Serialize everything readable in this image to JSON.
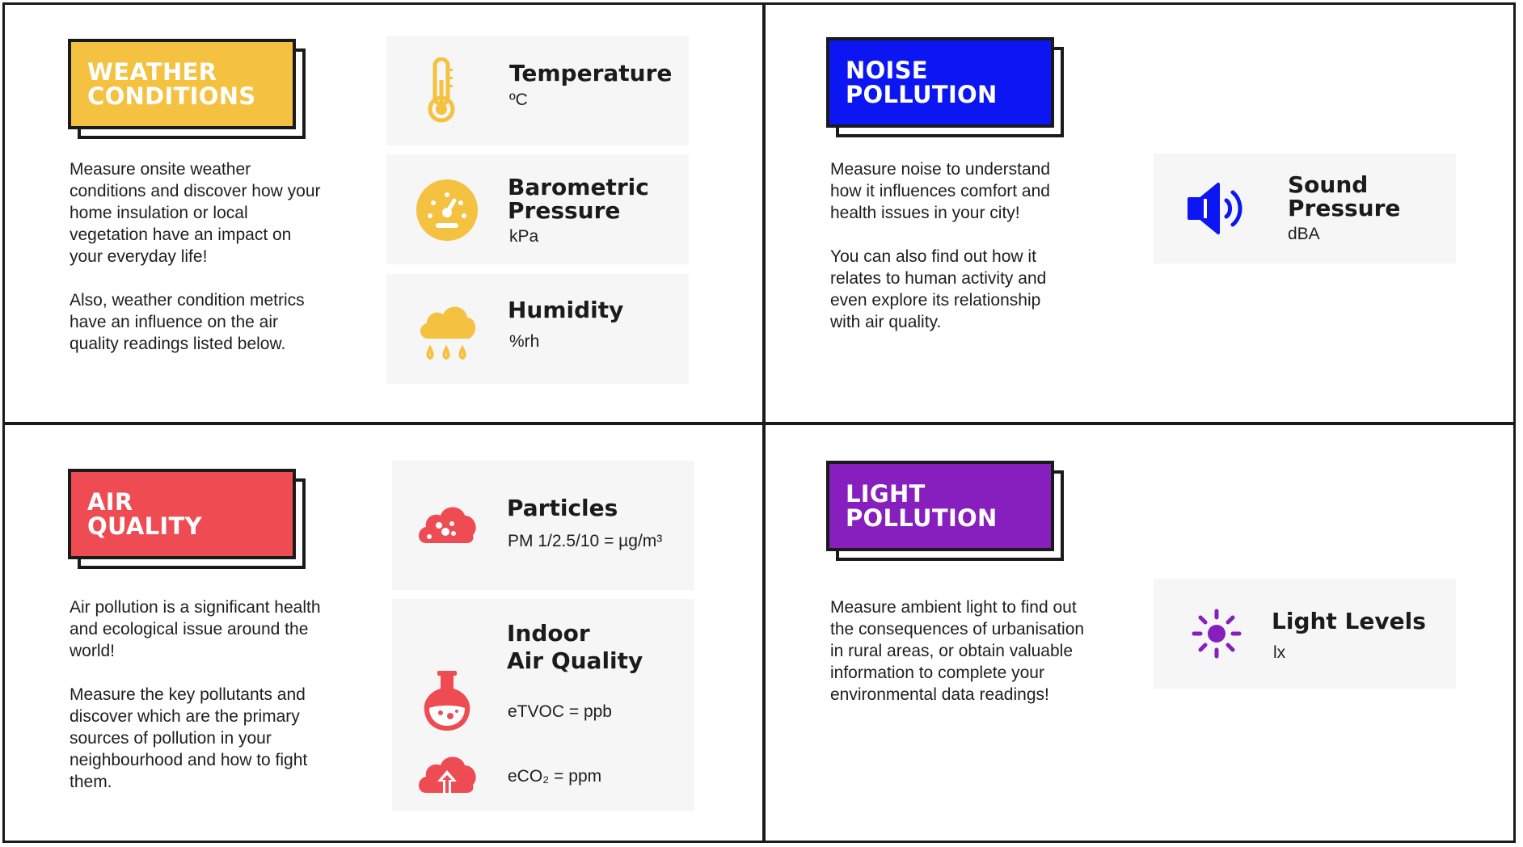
{
  "colors": {
    "weather": "#F4C141",
    "noise": "#0B16F2",
    "air": "#EE4B52",
    "light": "#861FBD",
    "card_bg": "#F6F6F7",
    "border": "#1A1A1A"
  },
  "weather": {
    "title_line1": "WEATHER",
    "title_line2": "CONDITIONS",
    "desc_p1": "Measure onsite weather conditions and discover how your home insulation or local vegetation have an impact on your everyday life!",
    "desc_p2": "Also, weather condition metrics have an influence on the air quality readings listed below.",
    "cards": [
      {
        "title": "Temperature",
        "unit": "ºC",
        "icon": "thermometer-icon"
      },
      {
        "title_line1": "Barometric",
        "title_line2": "Pressure",
        "unit": "kPa",
        "icon": "gauge-icon"
      },
      {
        "title": "Humidity",
        "unit": "%rh",
        "icon": "rain-cloud-icon"
      }
    ]
  },
  "noise": {
    "title_line1": "NOISE",
    "title_line2": "POLLUTION",
    "desc_p1": "Measure noise to understand how it influences comfort and health issues in your city!",
    "desc_p2": "You can also find out how it relates to human activity and even explore its relationship with air quality.",
    "card": {
      "title_line1": "Sound",
      "title_line2": "Pressure",
      "unit": "dBA",
      "icon": "speaker-icon"
    }
  },
  "air": {
    "title_line1": "AIR",
    "title_line2": "QUALITY",
    "desc_p1": "Air pollution is a significant health and ecological issue around the world!",
    "desc_p2": "Measure the key pollutants and discover which are the primary sources of pollution in your neighbourhood and how to fight them.",
    "cards": [
      {
        "title": "Particles",
        "unit": "PM 1/2.5/10 = µg/m³",
        "icon": "particle-cloud-icon"
      },
      {
        "title_line1": "Indoor",
        "title_line2": "Air Quality",
        "unit_voc": "eTVOC = ppb",
        "unit_co2": "eCO₂ = ppm",
        "icon_voc": "flask-icon",
        "icon_co2": "cloud-upload-icon"
      }
    ]
  },
  "light": {
    "title_line1": "LIGHT",
    "title_line2": "POLLUTION",
    "desc_p1": "Measure ambient light to find out the consequences of urbanisation in rural areas, or obtain valuable information to complete your environmental data readings!",
    "card": {
      "title": "Light Levels",
      "unit": "lx",
      "icon": "sun-icon"
    }
  }
}
